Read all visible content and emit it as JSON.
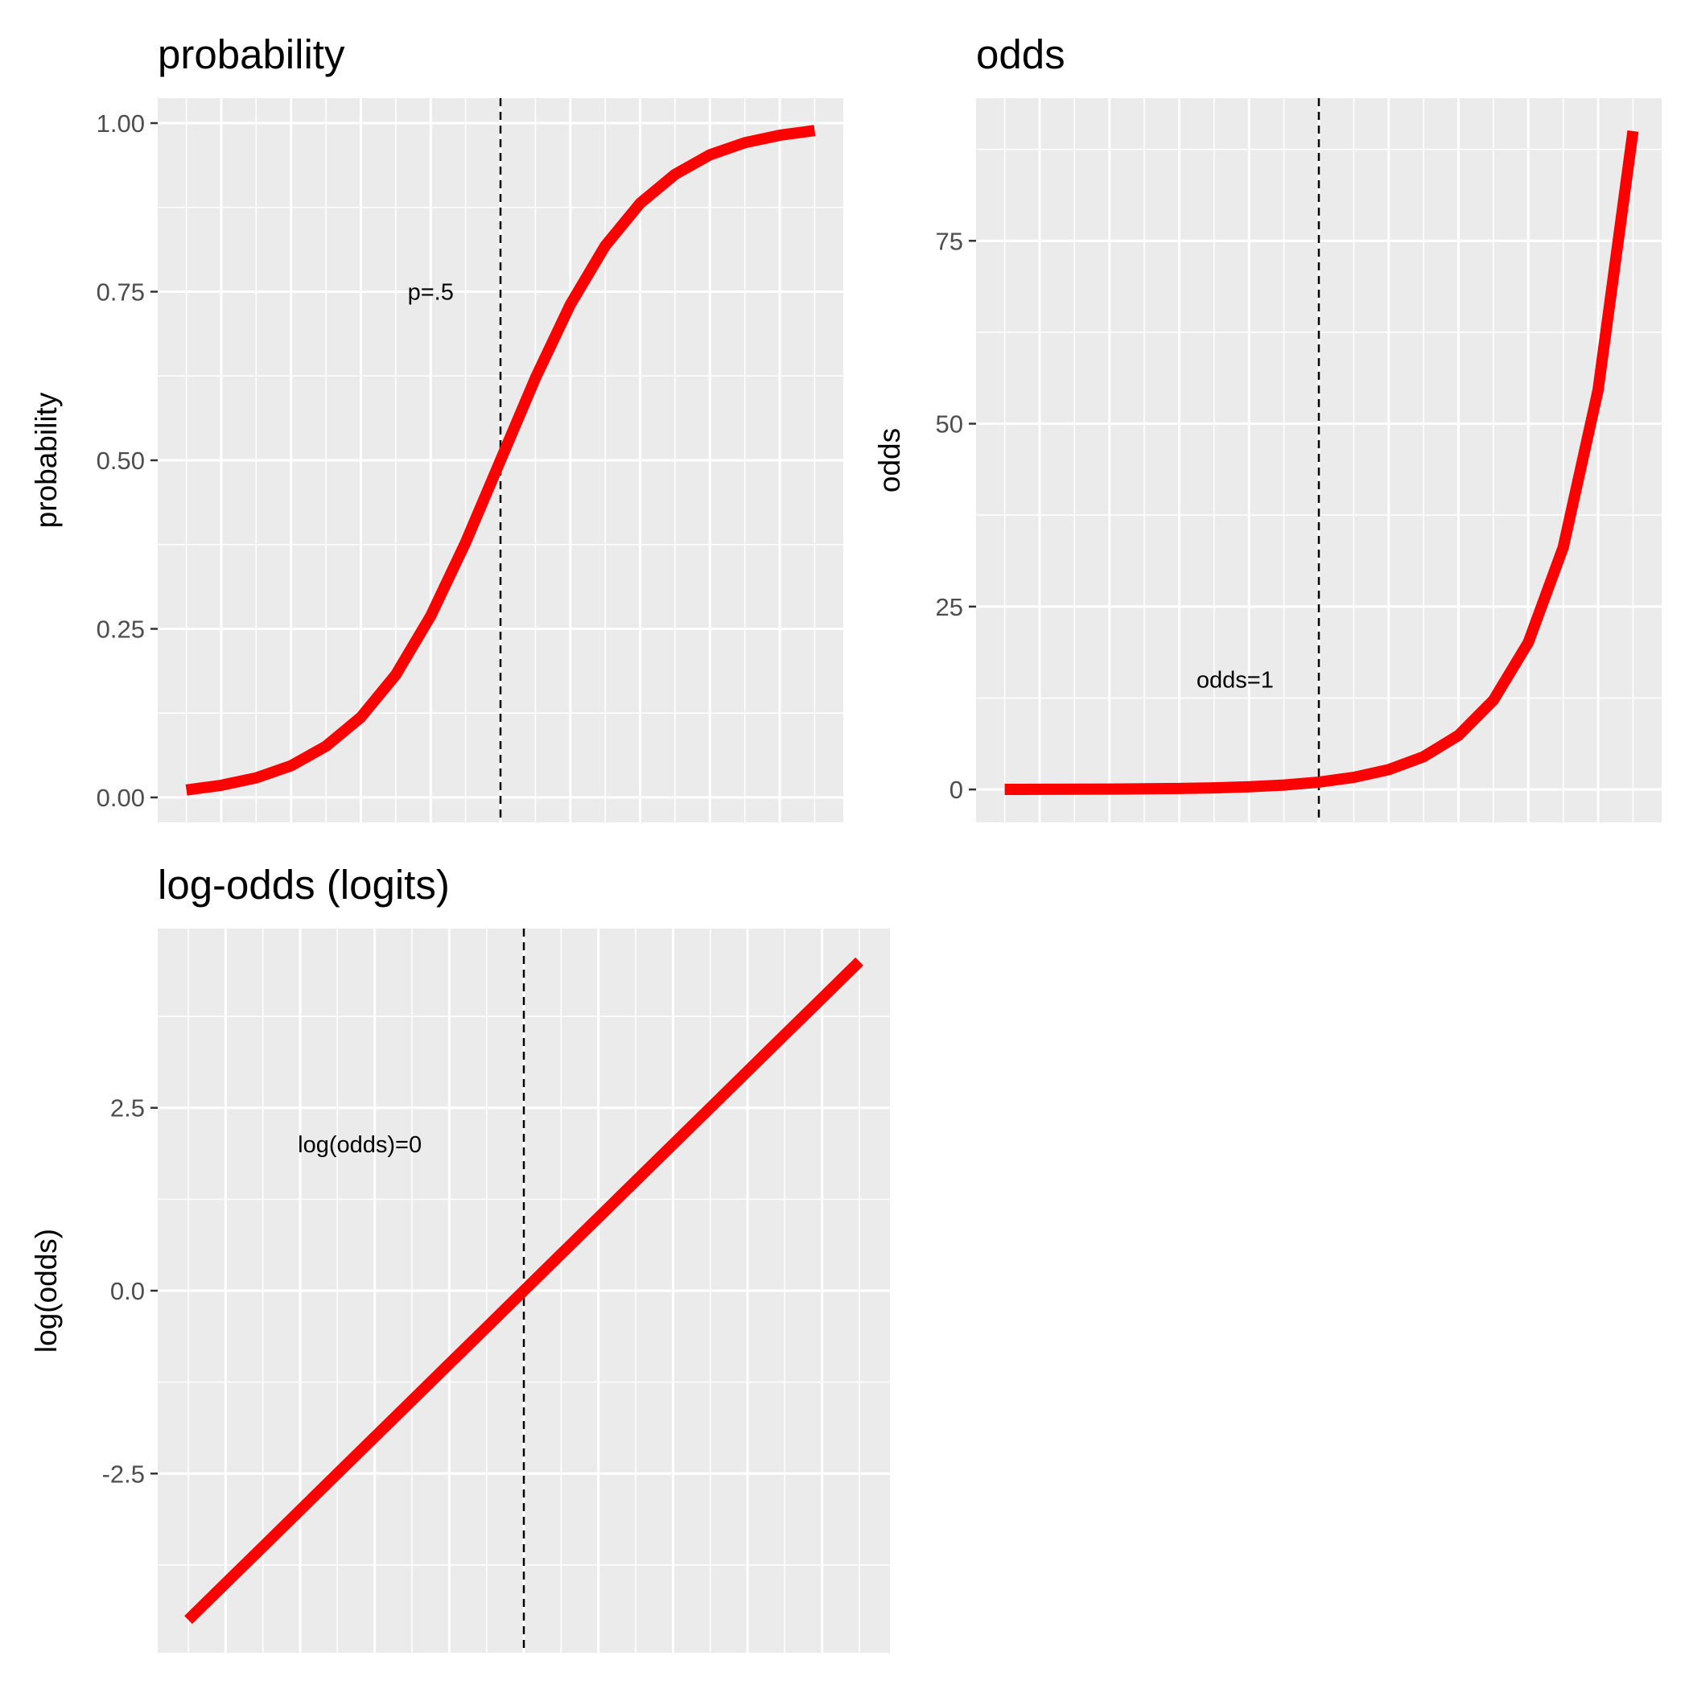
{
  "chart_data": [
    {
      "type": "line",
      "title": "probability",
      "xlabel": "",
      "ylabel": "probability",
      "ylim": [
        -0.037,
        1.037
      ],
      "xlim": [
        -4.91,
        4.91
      ],
      "grid": true,
      "yticks": [
        0,
        0.25,
        0.5,
        0.75,
        1
      ],
      "ytick_labels": [
        "0.00",
        "0.25",
        "0.50",
        "0.75",
        "1.00"
      ],
      "x": [
        -4.5,
        -4,
        -3.5,
        -3,
        -2.5,
        -2,
        -1.5,
        -1,
        -0.5,
        0,
        0.5,
        1,
        1.5,
        2,
        2.5,
        3,
        3.5,
        4,
        4.5
      ],
      "values": [
        0.011,
        0.018,
        0.029,
        0.047,
        0.076,
        0.119,
        0.182,
        0.269,
        0.378,
        0.5,
        0.622,
        0.731,
        0.818,
        0.881,
        0.924,
        0.953,
        0.971,
        0.982,
        0.989
      ],
      "vline": 0,
      "annotation": {
        "text": "p=.5",
        "x": -1,
        "y": 0.75
      },
      "colors": {
        "line": "#ff0000",
        "panel": "#ebebeb",
        "grid": "#ffffff",
        "vline": "#000000"
      }
    },
    {
      "type": "line",
      "title": "odds",
      "xlabel": "",
      "ylabel": "odds",
      "ylim": [
        -4.5,
        94.5
      ],
      "xlim": [
        -4.91,
        4.91
      ],
      "grid": true,
      "yticks": [
        0,
        25,
        50,
        75
      ],
      "ytick_labels": [
        "0",
        "25",
        "50",
        "75"
      ],
      "x": [
        -4.5,
        -4,
        -3.5,
        -3,
        -2.5,
        -2,
        -1.5,
        -1,
        -0.5,
        0,
        0.5,
        1,
        1.5,
        2,
        2.5,
        3,
        3.5,
        4,
        4.5
      ],
      "values": [
        0.011,
        0.018,
        0.03,
        0.05,
        0.082,
        0.135,
        0.223,
        0.368,
        0.607,
        1,
        1.65,
        2.72,
        4.48,
        7.39,
        12.2,
        20.1,
        33.1,
        54.6,
        90
      ],
      "vline": 0,
      "annotation": {
        "text": "odds=1",
        "x": -1.2,
        "y": 15
      },
      "colors": {
        "line": "#ff0000",
        "panel": "#ebebeb",
        "grid": "#ffffff",
        "vline": "#000000"
      }
    },
    {
      "type": "line",
      "title": "log-odds (logits)",
      "xlabel": "",
      "ylabel": "log(odds)",
      "ylim": [
        -4.95,
        4.95
      ],
      "xlim": [
        -4.91,
        4.91
      ],
      "grid": true,
      "yticks": [
        -2.5,
        0,
        2.5
      ],
      "ytick_labels": [
        "-2.5",
        "0.0",
        "2.5"
      ],
      "x": [
        -4.5,
        -4,
        -3.5,
        -3,
        -2.5,
        -2,
        -1.5,
        -1,
        -0.5,
        0,
        0.5,
        1,
        1.5,
        2,
        2.5,
        3,
        3.5,
        4,
        4.5
      ],
      "values": [
        -4.5,
        -4,
        -3.5,
        -3,
        -2.5,
        -2,
        -1.5,
        -1,
        -0.5,
        0,
        0.5,
        1,
        1.5,
        2,
        2.5,
        3,
        3.5,
        4,
        4.5
      ],
      "vline": 0,
      "annotation": {
        "text": "log(odds)=0",
        "x": -2.2,
        "y": 2
      },
      "colors": {
        "line": "#ff0000",
        "panel": "#ebebeb",
        "grid": "#ffffff",
        "vline": "#000000"
      }
    }
  ]
}
